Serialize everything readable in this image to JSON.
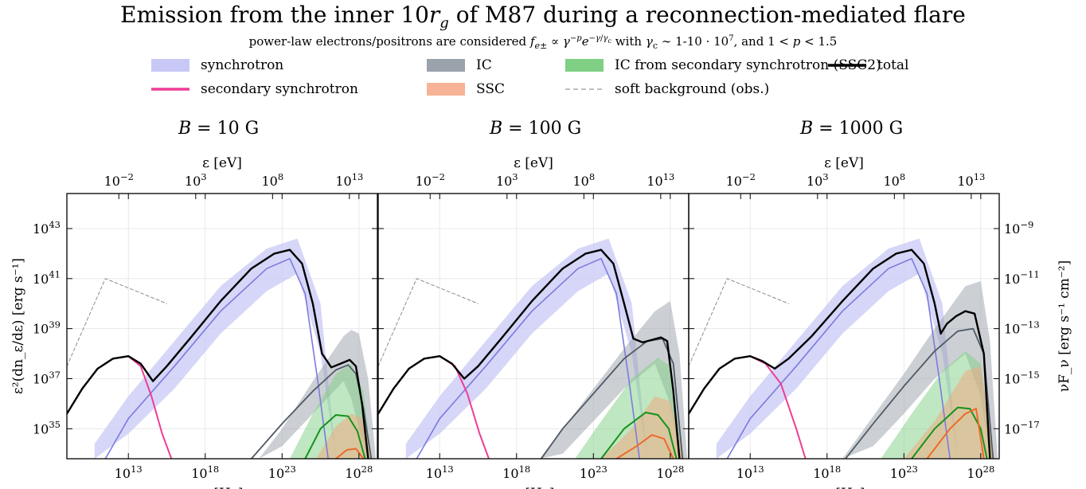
{
  "figure": {
    "title": "Emission from the inner 10r_g of M87 during a reconnection-mediated flare",
    "subtitle": "power-law electrons/positrons are considered f_e± ∝ γ^−p e^−γ/γc with γc ∼ 1-10 · 10^7, and 1 < p < 1.5"
  },
  "legend": [
    {
      "key": "synchrotron",
      "label": "synchrotron",
      "style": "band",
      "color": "#c8c8f6"
    },
    {
      "key": "ic",
      "label": "IC",
      "style": "band",
      "color": "#9aa2ac"
    },
    {
      "key": "ssc2",
      "label": "IC from secondary synchrotron (SSC2)",
      "style": "band",
      "color": "#7fcf84"
    },
    {
      "key": "total",
      "label": "total",
      "style": "line",
      "color": "#000000"
    },
    {
      "key": "secondary_sync",
      "label": "secondary synchrotron",
      "style": "line",
      "color": "#ee3d96"
    },
    {
      "key": "ssc",
      "label": "SSC",
      "style": "band",
      "color": "#f7b395"
    },
    {
      "key": "soft_bg",
      "label": "soft background (obs.)",
      "style": "dashed",
      "color": "#9a9a9a"
    }
  ],
  "axes": {
    "x_bottom_label": "ν [Hz]",
    "x_top_label": "ε [eV]",
    "y_left_label": "ε²(dn_ε/dε) [erg s⁻¹]",
    "y_right_label": "νF_ν [erg s⁻¹ cm⁻²]",
    "x_bottom_ticks": [
      "10^13",
      "10^18",
      "10^23",
      "10^28"
    ],
    "x_top_ticks": [
      "10^−2",
      "10^3",
      "10^8",
      "10^13"
    ],
    "y_left_ticks": [
      "10^35",
      "10^37",
      "10^39",
      "10^41",
      "10^43"
    ],
    "y_right_ticks": [
      "10^−17",
      "10^−15",
      "10^−13",
      "10^−11",
      "10^−9"
    ]
  },
  "chart_data": [
    {
      "type": "line",
      "panel_label": "B = 10 G",
      "x_scale": "log",
      "y_scale": "log",
      "xlim_log": [
        9,
        29.2
      ],
      "ylim_log": [
        33.8,
        44.4
      ],
      "series": [
        {
          "key": "soft_bg",
          "log_nu": [
            9,
            11.5,
            15.5
          ],
          "log_L": [
            37.5,
            41.0,
            40.0
          ]
        },
        {
          "key": "sync_band",
          "log_nu": [
            10.8,
            13,
            16,
            19,
            22,
            24,
            25.5,
            26.5
          ],
          "log_L_upper": [
            34.4,
            36.3,
            38.5,
            40.7,
            42.2,
            42.6,
            40.0,
            33.8
          ],
          "log_L_lower": [
            33.8,
            34.8,
            36.6,
            38.8,
            40.5,
            41.2,
            38.0,
            33.8
          ]
        },
        {
          "key": "sync_center",
          "log_nu": [
            11.5,
            13,
            16,
            19,
            22,
            23.5,
            24.5,
            25.3,
            26
          ],
          "log_L": [
            33.8,
            35.4,
            37.5,
            39.7,
            41.4,
            41.8,
            40.4,
            37.0,
            33.8
          ]
        },
        {
          "key": "ic_band",
          "log_nu": [
            21.5,
            23,
            25,
            27,
            27.5,
            28,
            28.6,
            29.1
          ],
          "log_L_upper": [
            33.8,
            35.0,
            36.9,
            38.7,
            38.95,
            38.8,
            37.0,
            33.8
          ],
          "log_L_lower": [
            33.8,
            34.3,
            35.6,
            36.9,
            36.2,
            35.0,
            33.8,
            33.8
          ]
        },
        {
          "key": "ic_center",
          "log_nu": [
            21.0,
            23,
            25,
            26.5,
            27.3,
            27.8,
            28.3,
            28.8
          ],
          "log_L": [
            33.8,
            35.2,
            36.5,
            37.35,
            37.55,
            37.2,
            35.8,
            33.8
          ]
        },
        {
          "key": "ssc2_band",
          "log_nu": [
            23.5,
            25,
            26.5,
            27.5,
            28.3,
            28.8
          ],
          "log_L_upper": [
            33.8,
            35.6,
            37.2,
            37.6,
            36.5,
            33.8
          ],
          "log_L_lower": [
            33.8,
            33.8,
            33.8,
            33.8,
            33.8,
            33.8
          ]
        },
        {
          "key": "ssc2_center",
          "log_nu": [
            24.5,
            25.5,
            26.5,
            27.3,
            27.9,
            28.4
          ],
          "log_L": [
            33.8,
            35.0,
            35.55,
            35.5,
            34.9,
            33.8
          ]
        },
        {
          "key": "ssc_band",
          "log_nu": [
            25.2,
            26.5,
            27.5,
            28.3,
            28.9
          ],
          "log_L_upper": [
            33.8,
            35.1,
            35.6,
            35.4,
            33.8
          ],
          "log_L_lower": [
            33.8,
            33.8,
            33.8,
            33.8,
            33.8
          ]
        },
        {
          "key": "ssc_center",
          "log_nu": [
            26.5,
            27.2,
            27.8,
            28.3
          ],
          "log_L": [
            33.8,
            34.15,
            34.2,
            33.8
          ]
        },
        {
          "key": "secondary_sync",
          "log_nu": [
            9,
            10,
            11,
            12,
            13,
            13.8,
            14.5,
            15.2,
            15.8
          ],
          "log_L": [
            35.6,
            36.6,
            37.4,
            37.8,
            37.9,
            37.5,
            36.3,
            34.8,
            33.8
          ]
        },
        {
          "key": "total",
          "log_nu": [
            9,
            10,
            11,
            12,
            13,
            13.8,
            14.6,
            15.5,
            17,
            19,
            21,
            22.5,
            23.5,
            24.3,
            25,
            25.6,
            26.2,
            26.8,
            27.4,
            27.8,
            28.2,
            28.6
          ],
          "log_L": [
            35.6,
            36.6,
            37.4,
            37.8,
            37.9,
            37.6,
            36.9,
            37.5,
            38.6,
            40.1,
            41.4,
            42.0,
            42.15,
            41.6,
            40.0,
            38.0,
            37.45,
            37.6,
            37.75,
            37.5,
            36.0,
            33.8
          ]
        }
      ]
    },
    {
      "type": "line",
      "panel_label": "B = 100 G",
      "x_scale": "log",
      "y_scale": "log",
      "xlim_log": [
        9,
        29.2
      ],
      "ylim_log": [
        33.8,
        44.4
      ],
      "series": [
        {
          "key": "soft_bg",
          "log_nu": [
            9,
            11.5,
            15.5
          ],
          "log_L": [
            37.5,
            41.0,
            40.0
          ]
        },
        {
          "key": "sync_band",
          "log_nu": [
            10.8,
            13,
            16,
            19,
            22,
            24,
            25.5,
            26.5
          ],
          "log_L_upper": [
            34.4,
            36.3,
            38.5,
            40.7,
            42.2,
            42.6,
            40.0,
            33.8
          ],
          "log_L_lower": [
            33.8,
            34.8,
            36.6,
            38.8,
            40.5,
            41.2,
            38.0,
            33.8
          ]
        },
        {
          "key": "sync_center",
          "log_nu": [
            11.5,
            13,
            16,
            19,
            22,
            23.5,
            24.5,
            25.3,
            26
          ],
          "log_L": [
            33.8,
            35.4,
            37.5,
            39.7,
            41.4,
            41.8,
            40.4,
            37.0,
            33.8
          ]
        },
        {
          "key": "ic_band",
          "log_nu": [
            19.5,
            21,
            23,
            25,
            27,
            28,
            28.6,
            29.1
          ],
          "log_L_upper": [
            33.8,
            35.0,
            36.6,
            38.2,
            39.7,
            40.1,
            38.0,
            33.8
          ],
          "log_L_lower": [
            33.8,
            34.0,
            35.3,
            36.6,
            37.6,
            36.0,
            33.8,
            33.8
          ]
        },
        {
          "key": "ic_center",
          "log_nu": [
            19.6,
            21,
            23,
            25,
            26.5,
            27.5,
            28.2,
            28.8
          ],
          "log_L": [
            33.8,
            35.0,
            36.4,
            37.8,
            38.5,
            38.6,
            37.6,
            33.8
          ]
        },
        {
          "key": "ssc2_band",
          "log_nu": [
            21.8,
            23.5,
            25.5,
            27.2,
            28.0,
            28.8
          ],
          "log_L_upper": [
            33.8,
            35.3,
            37.0,
            37.85,
            37.5,
            33.8
          ],
          "log_L_lower": [
            33.8,
            33.8,
            33.8,
            33.8,
            33.8,
            33.8
          ]
        },
        {
          "key": "ssc2_center",
          "log_nu": [
            23.5,
            25,
            26.4,
            27.2,
            27.9,
            28.4
          ],
          "log_L": [
            33.8,
            35.0,
            35.65,
            35.55,
            35.0,
            33.8
          ]
        },
        {
          "key": "ssc_band",
          "log_nu": [
            23.5,
            25.5,
            27.0,
            28.0,
            28.9
          ],
          "log_L_upper": [
            33.8,
            35.0,
            36.3,
            36.1,
            33.8
          ],
          "log_L_lower": [
            33.8,
            33.8,
            33.8,
            33.8,
            33.8
          ]
        },
        {
          "key": "ssc_center",
          "log_nu": [
            24.5,
            25.8,
            26.8,
            27.6,
            28.2
          ],
          "log_L": [
            33.8,
            34.3,
            34.75,
            34.6,
            33.8
          ]
        },
        {
          "key": "secondary_sync",
          "log_nu": [
            9,
            10,
            11,
            12,
            13,
            14,
            14.8,
            15.6,
            16.2
          ],
          "log_L": [
            35.6,
            36.6,
            37.4,
            37.8,
            37.9,
            37.5,
            36.4,
            34.8,
            33.8
          ]
        },
        {
          "key": "total",
          "log_nu": [
            9,
            10,
            11,
            12,
            13,
            13.8,
            14.6,
            15.5,
            17,
            19,
            21,
            22.5,
            23.5,
            24.3,
            25,
            25.6,
            26.2,
            26.8,
            27.4,
            27.8,
            28.2,
            28.6
          ],
          "log_L": [
            35.6,
            36.6,
            37.4,
            37.8,
            37.9,
            37.6,
            37.0,
            37.5,
            38.6,
            40.1,
            41.4,
            42.0,
            42.15,
            41.6,
            40.0,
            38.6,
            38.45,
            38.55,
            38.65,
            38.5,
            36.5,
            33.8
          ]
        }
      ]
    },
    {
      "type": "line",
      "panel_label": "B = 1000 G",
      "x_scale": "log",
      "y_scale": "log",
      "xlim_log": [
        9,
        29.2
      ],
      "ylim_log": [
        33.8,
        44.4
      ],
      "series": [
        {
          "key": "soft_bg",
          "log_nu": [
            9,
            11.5,
            15.5
          ],
          "log_L": [
            37.5,
            41.0,
            40.0
          ]
        },
        {
          "key": "sync_band",
          "log_nu": [
            10.8,
            13,
            16,
            19,
            22,
            24,
            25.5,
            26.5
          ],
          "log_L_upper": [
            34.4,
            36.3,
            38.5,
            40.7,
            42.2,
            42.6,
            40.0,
            33.8
          ],
          "log_L_lower": [
            33.8,
            34.8,
            36.6,
            38.8,
            40.5,
            41.2,
            38.0,
            33.8
          ]
        },
        {
          "key": "sync_center",
          "log_nu": [
            11.5,
            13,
            16,
            19,
            22,
            23.5,
            24.5,
            25.3,
            26
          ],
          "log_L": [
            33.8,
            35.4,
            37.5,
            39.7,
            41.4,
            41.8,
            40.4,
            37.0,
            33.8
          ]
        },
        {
          "key": "ic_band",
          "log_nu": [
            19.0,
            21,
            23,
            25,
            27,
            28,
            28.6,
            29.1
          ],
          "log_L_upper": [
            33.8,
            35.5,
            37.2,
            39.0,
            40.7,
            40.9,
            38.5,
            33.8
          ],
          "log_L_lower": [
            33.8,
            34.3,
            35.6,
            37.0,
            38.0,
            36.3,
            33.8,
            33.8
          ]
        },
        {
          "key": "ic_center",
          "log_nu": [
            19.2,
            21,
            23,
            25,
            26.5,
            27.5,
            28.2,
            28.8
          ],
          "log_L": [
            33.8,
            35.2,
            36.7,
            38.1,
            38.9,
            39.0,
            38.0,
            33.8
          ]
        },
        {
          "key": "ssc2_band",
          "log_nu": [
            21.5,
            23.5,
            25.5,
            27.0,
            28.0,
            28.8
          ],
          "log_L_upper": [
            33.8,
            35.6,
            37.3,
            38.1,
            37.6,
            33.8
          ],
          "log_L_lower": [
            33.8,
            33.8,
            33.8,
            33.8,
            33.8,
            33.8
          ]
        },
        {
          "key": "ssc2_center",
          "log_nu": [
            23.5,
            25,
            26.5,
            27.3,
            28.0,
            28.4
          ],
          "log_L": [
            33.8,
            35.0,
            35.85,
            35.8,
            35.0,
            33.8
          ]
        },
        {
          "key": "ssc_band",
          "log_nu": [
            23.0,
            25.0,
            27.0,
            28.0,
            28.9
          ],
          "log_L_upper": [
            33.8,
            35.3,
            37.3,
            37.5,
            33.8
          ],
          "log_L_lower": [
            33.8,
            33.8,
            33.8,
            33.8,
            33.8
          ]
        },
        {
          "key": "ssc_center",
          "log_nu": [
            24.5,
            26,
            27.0,
            27.7,
            28.2
          ],
          "log_L": [
            33.8,
            35.0,
            35.6,
            35.8,
            33.8
          ]
        },
        {
          "key": "secondary_sync",
          "log_nu": [
            9,
            10,
            11,
            12,
            13,
            14,
            15,
            16,
            16.6
          ],
          "log_L": [
            35.6,
            36.6,
            37.4,
            37.8,
            37.9,
            37.6,
            36.8,
            35.0,
            33.8
          ]
        },
        {
          "key": "total",
          "log_nu": [
            9,
            10,
            11,
            12,
            13,
            13.8,
            14.6,
            15.5,
            17,
            19,
            21,
            22.5,
            23.5,
            24.3,
            25,
            25.4,
            25.8,
            26.4,
            27.0,
            27.6,
            28.2,
            28.6
          ],
          "log_L": [
            35.6,
            36.6,
            37.4,
            37.8,
            37.9,
            37.7,
            37.4,
            37.8,
            38.7,
            40.1,
            41.4,
            42.0,
            42.15,
            41.6,
            40.0,
            38.8,
            39.2,
            39.5,
            39.7,
            39.6,
            38.0,
            33.8
          ]
        }
      ]
    }
  ]
}
